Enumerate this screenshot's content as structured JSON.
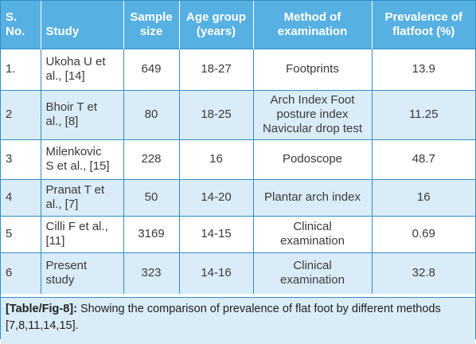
{
  "table": {
    "headers": {
      "sno": [
        "S.",
        "No."
      ],
      "study": "Study",
      "sample": [
        "Sample",
        "size"
      ],
      "age": [
        "Age group",
        "(years)"
      ],
      "method": [
        "Method of",
        "examination"
      ],
      "prevalence": [
        "Prevalence of",
        "flatfoot (%)"
      ]
    },
    "rows": [
      {
        "sno": "1.",
        "study": [
          "Ukoha U et",
          "al., [14]"
        ],
        "sample": "649",
        "age": "18-27",
        "method": [
          "Footprints"
        ],
        "prevalence": "13.9"
      },
      {
        "sno": "2",
        "study": [
          "Bhoir T et",
          "al., [8]"
        ],
        "sample": "80",
        "age": "18-25",
        "method": [
          "Arch Index Foot",
          "posture index",
          "Navicular drop test"
        ],
        "prevalence": "11.25"
      },
      {
        "sno": "3",
        "study": [
          "Milenkovic",
          "S et al., [15]"
        ],
        "sample": "228",
        "age": "16",
        "method": [
          "Podoscope"
        ],
        "prevalence": "48.7"
      },
      {
        "sno": "4",
        "study": [
          "Pranat T et",
          "al., [7]"
        ],
        "sample": "50",
        "age": "14-20",
        "method": [
          "Plantar arch index"
        ],
        "prevalence": "16"
      },
      {
        "sno": "5",
        "study": [
          "Cilli F et al.,",
          "[11]"
        ],
        "sample": "3169",
        "age": "14-15",
        "method": [
          "Clinical",
          "examination"
        ],
        "prevalence": "0.69"
      },
      {
        "sno": "6",
        "study": [
          "Present",
          "study"
        ],
        "sample": "323",
        "age": "14-16",
        "method": [
          "Clinical",
          "examination"
        ],
        "prevalence": "32.8"
      }
    ]
  },
  "caption": {
    "label": "[Table/Fig-8]:",
    "text_line1": "Showing the comparison of prevalence of flat foot by different methods",
    "text_line2": "[7,8,11,14,15]."
  }
}
